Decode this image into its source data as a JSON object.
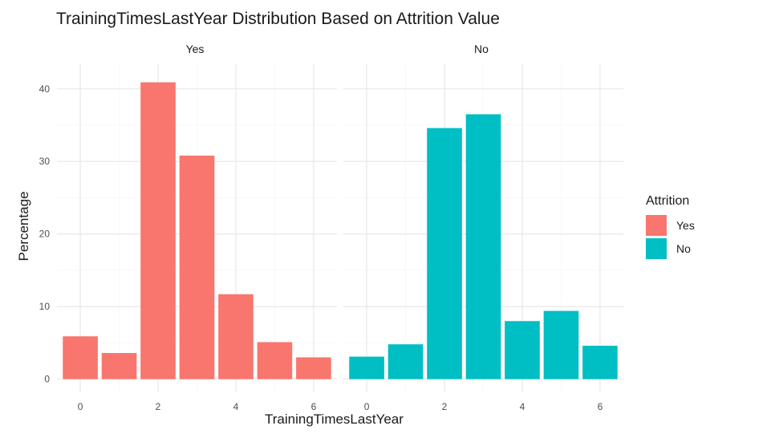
{
  "chart_data": {
    "type": "bar",
    "title": "TrainingTimesLastYear Distribution Based on Attrition Value",
    "xlabel": "TrainingTimesLastYear",
    "ylabel": "Percentage",
    "x": [
      0,
      1,
      2,
      3,
      4,
      5,
      6
    ],
    "x_ticks": [
      0,
      2,
      4,
      6
    ],
    "y_ticks": [
      0,
      10,
      20,
      30,
      40
    ],
    "ylim": [
      0,
      42
    ],
    "grid": true,
    "legend": {
      "title": "Attrition",
      "position": "right",
      "entries": [
        {
          "label": "Yes",
          "color": "#F8766D"
        },
        {
          "label": "No",
          "color": "#00BFC4"
        }
      ]
    },
    "facets": [
      {
        "label": "Yes",
        "color": "#F8766D",
        "values": [
          5.9,
          3.6,
          40.9,
          30.8,
          11.7,
          5.1,
          3.0
        ]
      },
      {
        "label": "No",
        "color": "#00BFC4",
        "values": [
          3.1,
          4.8,
          34.6,
          36.5,
          8.0,
          9.4,
          4.6
        ]
      }
    ]
  }
}
